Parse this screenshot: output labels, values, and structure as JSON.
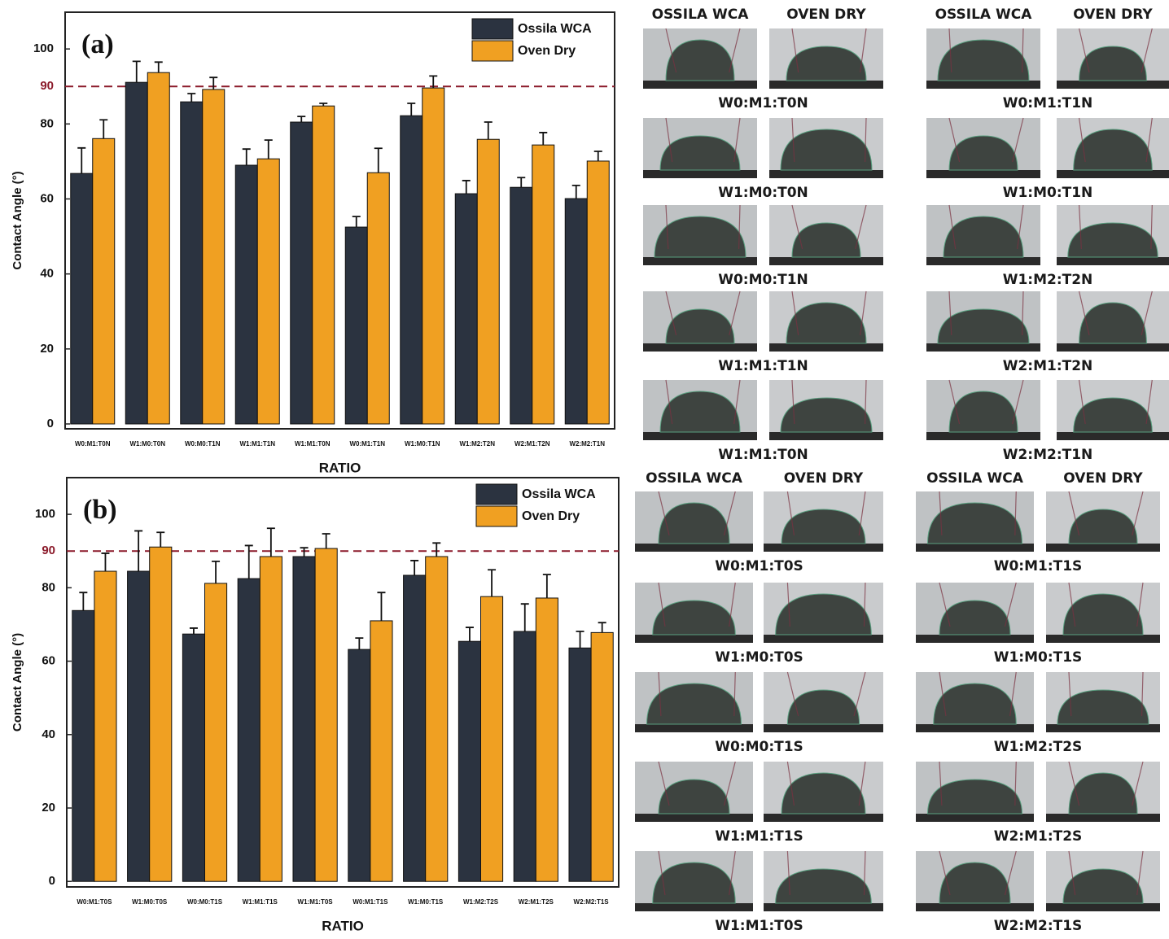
{
  "chart_data": [
    {
      "type": "bar",
      "panel_label": "(a)",
      "x_label": "RATIO",
      "y_label": "Contact Angle (°)",
      "categories": [
        "W0:M1:T0N",
        "W1:M0:T0N",
        "W0:M0:T1N",
        "W1:M1:T1N",
        "W1:M1:T0N",
        "W0:M1:T1N",
        "W1:M0:T1N",
        "W1:M2:T2N",
        "W2:M1:T2N",
        "W2:M2:T1N"
      ],
      "series": [
        {
          "name": "Ossila WCA",
          "color": "#2b3340",
          "values": [
            66.8,
            91.1,
            85.9,
            69,
            80.5,
            52.5,
            82.2,
            61.4,
            63.1,
            60.1
          ],
          "errors": [
            6.8,
            5.6,
            2.2,
            4.3,
            1.5,
            2.8,
            3.3,
            3.5,
            2.6,
            3.5
          ]
        },
        {
          "name": "Oven Dry",
          "color": "#f0a022",
          "values": [
            76.1,
            93.7,
            89.2,
            70.7,
            84.8,
            67,
            89.6,
            75.9,
            74.4,
            70.1
          ],
          "errors": [
            5,
            2.8,
            3.2,
            5,
            0.7,
            6.5,
            3.2,
            4.6,
            3.3,
            2.6
          ]
        }
      ],
      "ylim": [
        -1.3,
        109.8
      ],
      "yticks": [
        0,
        20,
        40,
        60,
        80,
        100
      ],
      "reference_line": 90,
      "reference_color": "#8b1a2a",
      "legend": "upper right"
    },
    {
      "type": "bar",
      "panel_label": "(b)",
      "x_label": "RATIO",
      "y_label": "Contact Angle (°)",
      "categories": [
        "W0:M1:T0S",
        "W1:M0:T0S",
        "W0:M0:T1S",
        "W1:M1:T1S",
        "W1:M1:T0S",
        "W0:M1:T1S",
        "W1:M0:T1S",
        "W1:M2:T2S",
        "W2:M1:T2S",
        "W2:M2:T1S"
      ],
      "series": [
        {
          "name": "Ossila WCA",
          "color": "#2b3340",
          "values": [
            73.8,
            84.5,
            67.4,
            82.5,
            88.5,
            63.2,
            83.4,
            65.4,
            68.1,
            63.6
          ],
          "errors": [
            4.9,
            11,
            1.6,
            9,
            2.4,
            3.1,
            4,
            3.8,
            7.5,
            4.5
          ]
        },
        {
          "name": "Oven Dry",
          "color": "#f0a022",
          "values": [
            84.5,
            91.1,
            81.2,
            88.5,
            90.7,
            71,
            88.5,
            77.6,
            77.2,
            67.8
          ],
          "errors": [
            4.9,
            4,
            6,
            7.7,
            4,
            7.7,
            3.7,
            7.3,
            6.4,
            2.7
          ]
        }
      ],
      "ylim": [
        -1.5,
        110
      ],
      "yticks": [
        0,
        20,
        40,
        60,
        80,
        100
      ],
      "reference_line": 90,
      "reference_color": "#8b1a2a",
      "legend": "upper right"
    }
  ],
  "photo_panels": [
    {
      "columns": [
        "OSSILA WCA",
        "OVEN DRY",
        "OSSILA WCA",
        "OVEN DRY"
      ],
      "labels": [
        "W0:M1:T0N",
        "W1:M0:T0N",
        "W0:M0:T1N",
        "W1:M1:T1N",
        "W1:M1:T0N",
        "W0:M1:T1N",
        "W1:M0:T1N",
        "W1:M2:T2N",
        "W2:M1:T2N",
        "W2:M2:T1N"
      ]
    },
    {
      "columns": [
        "OSSILA WCA",
        "OVEN DRY",
        "OSSILA WCA",
        "OVEN DRY"
      ],
      "labels": [
        "W0:M1:T0S",
        "W1:M0:T0S",
        "W0:M0:T1S",
        "W1:M1:T1S",
        "W1:M1:T0S",
        "W0:M1:T1S",
        "W1:M0:T1S",
        "W1:M2:T2S",
        "W2:M1:T2S",
        "W2:M2:T1S"
      ]
    }
  ]
}
